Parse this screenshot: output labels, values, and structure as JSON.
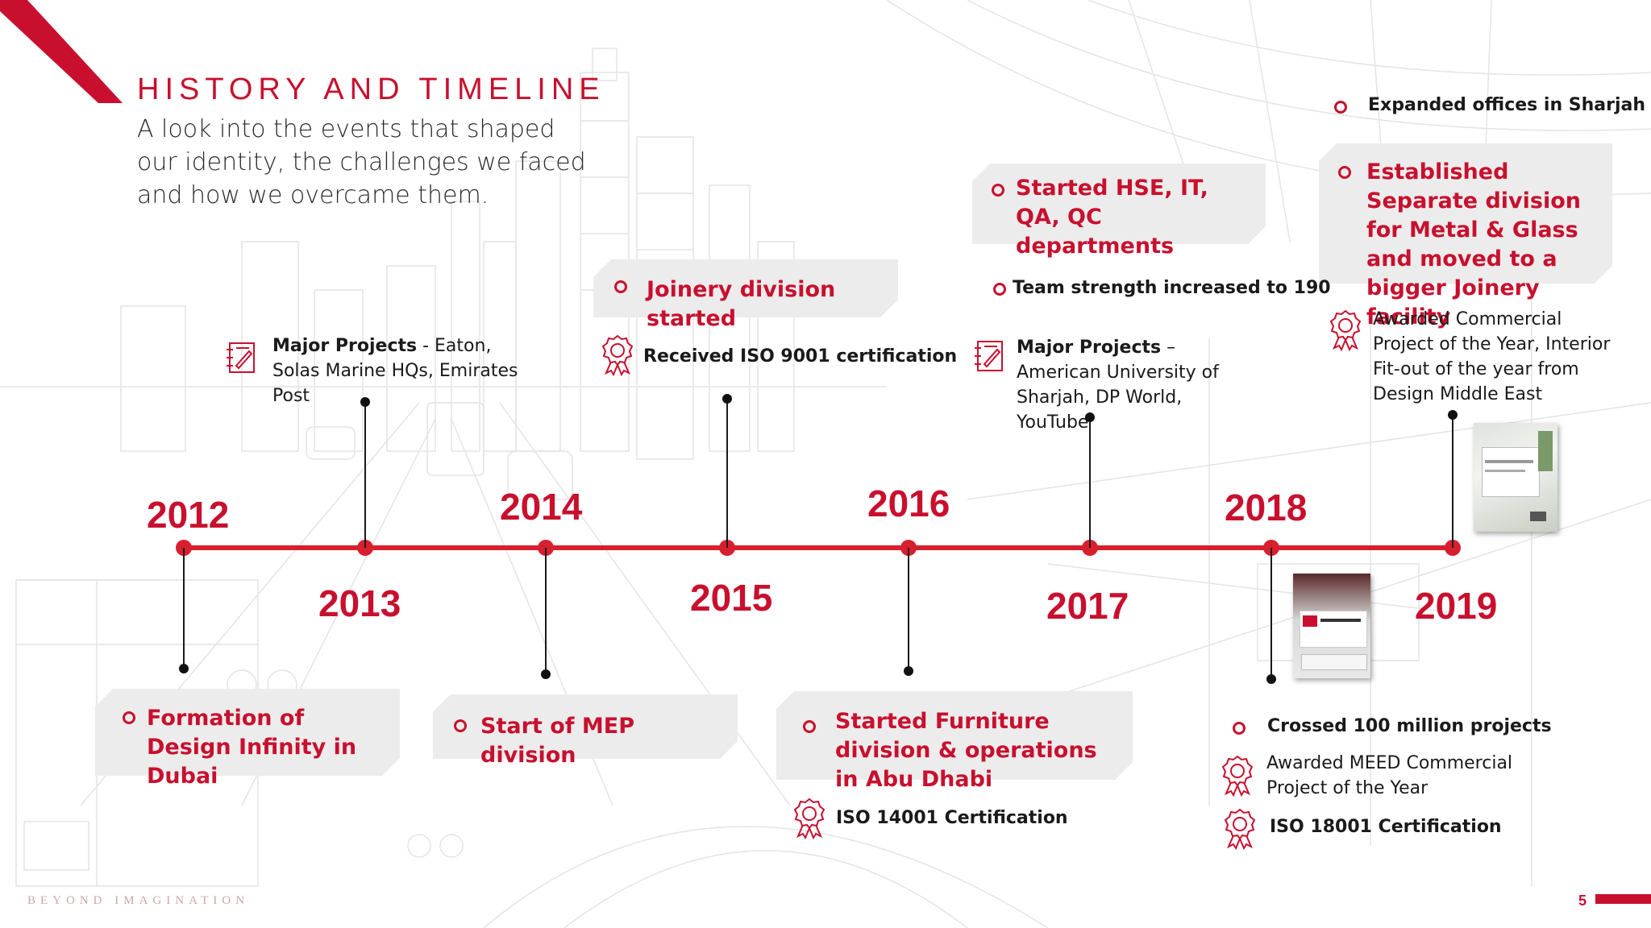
{
  "header": {
    "title": "HISTORY AND TIMELINE",
    "subtitle": "A look into the events that shaped our identity, the challenges we faced and how we overcame them."
  },
  "colors": {
    "accent": "#c8102e",
    "line": "#d71f2e",
    "callout_bg": "#ececec"
  },
  "years": [
    "2012",
    "2013",
    "2014",
    "2015",
    "2016",
    "2017",
    "2018",
    "2019"
  ],
  "callouts": {
    "formation": "Formation of Design Infinity in Dubai",
    "mep": "Start of MEP division",
    "joinery": "Joinery division started",
    "furniture": "Started Furniture division & operations in Abu Dhabi",
    "hse": "Started HSE, IT, QA, QC departments",
    "metal_glass": "Established Separate division for Metal & Glass and moved to a bigger Joinery facility"
  },
  "notes": {
    "projects_2013_label": "Major Projects",
    "projects_2013_text": " - Eaton, Solas Marine HQs, Emirates Post",
    "iso9001": "Received ISO 9001 certification",
    "iso14001": "ISO 14001 Certification",
    "team": "Team strength increased to 190",
    "projects_2017_label": "Major Projects",
    "projects_2017_text": " – American University of Sharjah, DP World, YouTube",
    "sharjah": "Expanded offices in Sharjah",
    "award_2019": "Awarded Commercial Project of the Year, Interior Fit-out of the year from Design Middle East",
    "crossed": "Crossed 100 million projects",
    "meed": "Awarded MEED Commercial Project of the Year",
    "iso18001": "ISO 18001 Certification"
  },
  "icons": {
    "projects": "blueprint-icon",
    "award": "award-ribbon-icon",
    "bullet": "ring-bullet-icon"
  },
  "footer": {
    "tagline": "BEYOND IMAGINATION",
    "page": "5"
  }
}
